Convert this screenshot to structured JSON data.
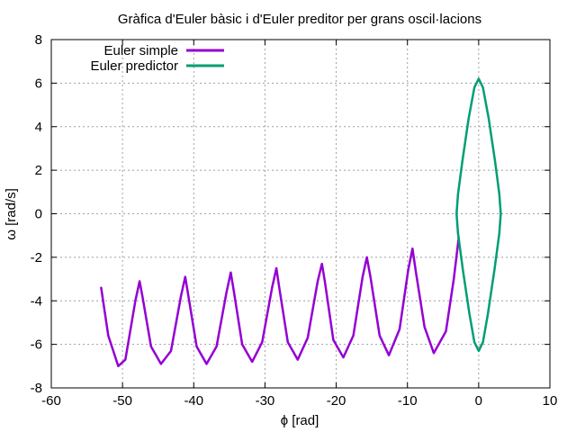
{
  "chart_data": {
    "type": "line",
    "title": "Gràfica d'Euler bàsic i d'Euler preditor per grans oscil·lacions",
    "xlabel": "ϕ [rad]",
    "ylabel": "ω [rad/s]",
    "xlim": [
      -60,
      10
    ],
    "ylim": [
      -8,
      8
    ],
    "xticks": [
      -60,
      -50,
      -40,
      -30,
      -20,
      -10,
      0,
      10
    ],
    "yticks": [
      -8,
      -6,
      -4,
      -2,
      0,
      2,
      4,
      6,
      8
    ],
    "grid": true,
    "legend_position": "top-left",
    "series": [
      {
        "name": "Euler simple",
        "color": "#9400d3",
        "x": [
          -2.8,
          -3.5,
          -4.6,
          -6.3,
          -7.6,
          -8.8,
          -9.3,
          -9.9,
          -11.1,
          -12.6,
          -13.9,
          -15.2,
          -15.7,
          -16.3,
          -17.6,
          -19.0,
          -20.4,
          -21.6,
          -22.0,
          -22.6,
          -24.0,
          -25.4,
          -26.8,
          -28.0,
          -28.4,
          -29.0,
          -30.4,
          -31.8,
          -33.2,
          -34.4,
          -34.8,
          -35.4,
          -36.8,
          -38.2,
          -39.6,
          -40.8,
          -41.2,
          -41.8,
          -43.2,
          -44.6,
          -46.0,
          -47.2,
          -47.6,
          -48.2,
          -49.6,
          -50.6,
          -52.0,
          -53.0
        ],
        "y": [
          -1.1,
          -3.0,
          -5.4,
          -6.4,
          -5.2,
          -2.7,
          -1.6,
          -2.6,
          -5.3,
          -6.5,
          -5.6,
          -2.9,
          -2.0,
          -2.9,
          -5.6,
          -6.6,
          -5.8,
          -3.1,
          -2.3,
          -3.1,
          -5.7,
          -6.7,
          -5.9,
          -3.4,
          -2.5,
          -3.4,
          -5.9,
          -6.8,
          -6.0,
          -3.5,
          -2.7,
          -3.6,
          -6.1,
          -6.9,
          -6.1,
          -3.7,
          -2.9,
          -3.8,
          -6.3,
          -6.9,
          -6.1,
          -3.8,
          -3.1,
          -4.0,
          -6.7,
          -7.0,
          -5.6,
          -3.4
        ]
      },
      {
        "name": "Euler predictor",
        "color": "#009e73",
        "x": [
          0,
          0.6,
          1.4,
          2.3,
          2.9,
          3.1,
          2.9,
          2.2,
          1.3,
          0.6,
          0,
          -0.6,
          -1.3,
          -2.2,
          -2.9,
          -3.1,
          -2.9,
          -2.3,
          -1.4,
          -0.6,
          0
        ],
        "y": [
          6.2,
          5.8,
          4.4,
          2.4,
          0.9,
          0,
          -0.9,
          -2.6,
          -4.6,
          -5.9,
          -6.3,
          -5.9,
          -4.6,
          -2.6,
          -0.9,
          0,
          0.9,
          2.4,
          4.4,
          5.8,
          6.2
        ]
      }
    ]
  }
}
